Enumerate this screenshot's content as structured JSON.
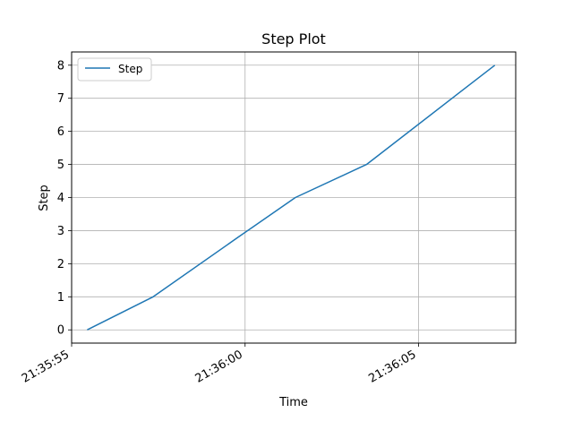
{
  "chart_data": {
    "type": "line",
    "title": "Step Plot",
    "xlabel": "Time",
    "ylabel": "Step",
    "x_type": "time",
    "x_ticks": [
      "21:35:55",
      "21:36:00",
      "21:36:05"
    ],
    "xlim": [
      "21:35:55",
      "21:36:07.8"
    ],
    "y_ticks": [
      0,
      1,
      2,
      3,
      4,
      5,
      6,
      7,
      8
    ],
    "ylim": [
      -0.4,
      8.4
    ],
    "grid": true,
    "legend": {
      "position": "top-left"
    },
    "series": [
      {
        "name": "Step",
        "color": "#1f77b4",
        "x": [
          "21:35:55.45",
          "21:35:57.35",
          "21:35:59.8",
          "21:36:01.45",
          "21:36:03.5",
          "21:36:07.2"
        ],
        "y": [
          0,
          1,
          2.8,
          4,
          5,
          8
        ]
      }
    ]
  }
}
